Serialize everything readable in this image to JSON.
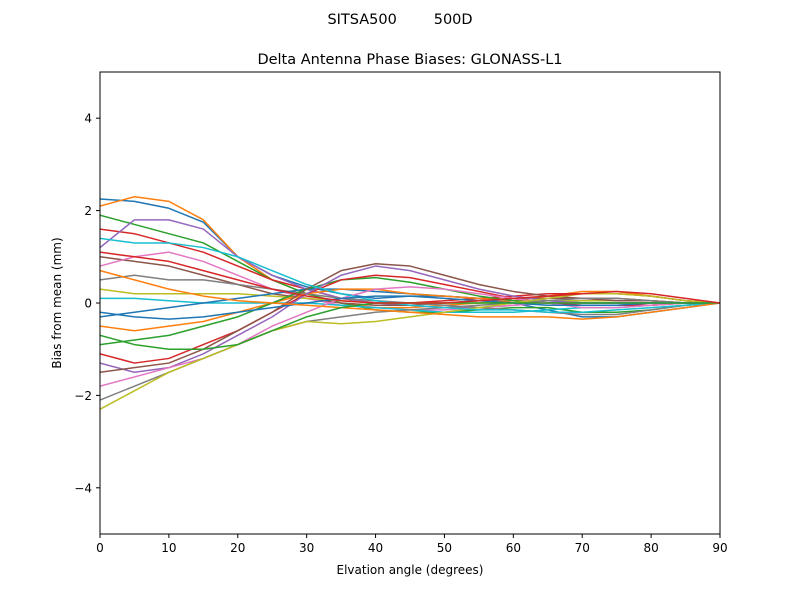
{
  "figure": {
    "suptitle": "SITSA500        500D"
  },
  "chart_data": {
    "type": "line",
    "title": "Delta Antenna Phase Biases: GLONASS-L1",
    "xlabel": "Elvation angle (degrees)",
    "ylabel": "Bias from mean (mm)",
    "xlim": [
      0,
      90
    ],
    "ylim": [
      -5,
      5
    ],
    "xticks": [
      0,
      10,
      20,
      30,
      40,
      50,
      60,
      70,
      80,
      90
    ],
    "yticks": [
      -4,
      -2,
      0,
      2,
      4
    ],
    "ytick_labels": [
      "−4",
      "−2",
      "0",
      "2",
      "4"
    ],
    "grid": false,
    "legend": "none",
    "x": [
      0,
      5,
      10,
      15,
      20,
      25,
      30,
      35,
      40,
      45,
      50,
      55,
      60,
      65,
      70,
      75,
      80,
      85,
      90
    ],
    "colors": [
      "#1f77b4",
      "#ff7f0e",
      "#2ca02c",
      "#d62728",
      "#9467bd",
      "#8c564b",
      "#e377c2",
      "#7f7f7f",
      "#bcbd22",
      "#17becf"
    ],
    "series": [
      {
        "values": [
          2.25,
          2.2,
          2.05,
          1.75,
          1.0,
          0.6,
          0.35,
          0.2,
          0.1,
          0.15,
          0.15,
          0.1,
          0.0,
          -0.15,
          -0.3,
          -0.3,
          -0.2,
          -0.1,
          0.0
        ]
      },
      {
        "values": [
          2.1,
          2.3,
          2.2,
          1.8,
          1.0,
          0.5,
          0.2,
          0.0,
          -0.1,
          -0.1,
          -0.05,
          0.0,
          0.05,
          0.15,
          0.25,
          0.25,
          0.15,
          0.05,
          0.0
        ]
      },
      {
        "values": [
          1.9,
          1.7,
          1.5,
          1.3,
          0.9,
          0.5,
          0.2,
          0.0,
          -0.15,
          -0.2,
          -0.2,
          -0.15,
          -0.1,
          -0.1,
          -0.2,
          -0.2,
          -0.15,
          -0.05,
          0.0
        ]
      },
      {
        "values": [
          1.6,
          1.5,
          1.3,
          1.1,
          0.8,
          0.5,
          0.3,
          0.1,
          0.0,
          0.0,
          0.05,
          0.1,
          0.15,
          0.2,
          0.2,
          0.2,
          0.15,
          0.05,
          0.0
        ]
      },
      {
        "values": [
          1.2,
          1.8,
          1.8,
          1.6,
          1.0,
          0.6,
          0.3,
          0.1,
          0.0,
          -0.05,
          -0.1,
          -0.1,
          -0.05,
          0.0,
          0.05,
          0.05,
          0.05,
          0.0,
          0.0
        ]
      },
      {
        "values": [
          1.0,
          0.9,
          0.8,
          0.6,
          0.4,
          0.2,
          0.1,
          0.0,
          -0.05,
          -0.05,
          0.0,
          0.05,
          0.1,
          0.1,
          0.1,
          0.1,
          0.05,
          0.0,
          0.0
        ]
      },
      {
        "values": [
          0.8,
          1.0,
          1.1,
          0.9,
          0.6,
          0.3,
          0.1,
          -0.05,
          -0.1,
          -0.15,
          -0.15,
          -0.1,
          -0.05,
          0.0,
          0.0,
          0.0,
          0.0,
          0.0,
          0.0
        ]
      },
      {
        "values": [
          0.5,
          0.6,
          0.5,
          0.5,
          0.4,
          0.3,
          0.2,
          0.1,
          0.05,
          0.0,
          -0.05,
          -0.1,
          -0.15,
          -0.2,
          -0.25,
          -0.25,
          -0.15,
          -0.05,
          0.0
        ]
      },
      {
        "values": [
          0.3,
          0.2,
          0.2,
          0.2,
          0.2,
          0.15,
          0.1,
          0.05,
          0.0,
          0.0,
          0.0,
          0.0,
          0.0,
          0.05,
          0.05,
          0.05,
          0.05,
          0.0,
          0.0
        ]
      },
      {
        "values": [
          0.1,
          0.1,
          0.05,
          0.0,
          0.0,
          0.0,
          0.0,
          -0.05,
          -0.1,
          -0.15,
          -0.2,
          -0.2,
          -0.2,
          -0.15,
          -0.1,
          -0.1,
          -0.05,
          0.0,
          0.0
        ]
      },
      {
        "values": [
          -0.3,
          -0.2,
          -0.1,
          0.0,
          0.1,
          0.2,
          0.3,
          0.3,
          0.25,
          0.2,
          0.15,
          0.1,
          0.05,
          0.0,
          0.0,
          0.0,
          0.0,
          0.0,
          0.0
        ]
      },
      {
        "values": [
          -0.5,
          -0.6,
          -0.5,
          -0.4,
          -0.2,
          0.0,
          0.2,
          0.3,
          0.3,
          0.2,
          0.15,
          0.1,
          0.05,
          0.0,
          -0.05,
          -0.05,
          -0.05,
          0.0,
          0.0
        ]
      },
      {
        "values": [
          -0.9,
          -0.8,
          -0.7,
          -0.5,
          -0.3,
          0.0,
          0.3,
          0.5,
          0.55,
          0.45,
          0.3,
          0.15,
          0.05,
          0.0,
          0.0,
          0.0,
          0.0,
          0.0,
          0.0
        ]
      },
      {
        "values": [
          -1.1,
          -1.3,
          -1.2,
          -0.9,
          -0.6,
          -0.2,
          0.2,
          0.5,
          0.6,
          0.55,
          0.4,
          0.25,
          0.1,
          0.0,
          -0.05,
          -0.05,
          -0.05,
          0.0,
          0.0
        ]
      },
      {
        "values": [
          -1.3,
          -1.5,
          -1.4,
          -1.1,
          -0.7,
          -0.3,
          0.2,
          0.6,
          0.8,
          0.7,
          0.5,
          0.3,
          0.15,
          0.05,
          0.0,
          0.0,
          0.0,
          0.0,
          0.0
        ]
      },
      {
        "values": [
          -1.5,
          -1.4,
          -1.3,
          -1.0,
          -0.6,
          -0.2,
          0.3,
          0.7,
          0.85,
          0.8,
          0.6,
          0.4,
          0.25,
          0.15,
          0.1,
          0.05,
          0.05,
          0.0,
          0.0
        ]
      },
      {
        "values": [
          -1.8,
          -1.6,
          -1.4,
          -1.2,
          -0.9,
          -0.5,
          -0.2,
          0.1,
          0.3,
          0.35,
          0.3,
          0.2,
          0.1,
          0.0,
          -0.1,
          -0.1,
          -0.05,
          0.0,
          0.0
        ]
      },
      {
        "values": [
          -2.1,
          -1.8,
          -1.5,
          -1.2,
          -0.9,
          -0.6,
          -0.4,
          -0.3,
          -0.2,
          -0.15,
          -0.1,
          -0.05,
          0.0,
          0.05,
          0.1,
          0.1,
          0.05,
          0.0,
          0.0
        ]
      },
      {
        "values": [
          -2.3,
          -1.9,
          -1.5,
          -1.2,
          -0.9,
          -0.6,
          -0.4,
          -0.45,
          -0.4,
          -0.3,
          -0.2,
          -0.1,
          0.0,
          0.1,
          0.2,
          0.2,
          0.15,
          0.05,
          0.0
        ]
      },
      {
        "values": [
          1.4,
          1.3,
          1.3,
          1.2,
          1.0,
          0.7,
          0.4,
          0.2,
          0.05,
          -0.05,
          -0.1,
          -0.15,
          -0.15,
          -0.2,
          -0.2,
          -0.15,
          -0.1,
          -0.05,
          0.0
        ]
      },
      {
        "values": [
          -0.2,
          -0.3,
          -0.35,
          -0.3,
          -0.2,
          -0.1,
          0.0,
          0.1,
          0.15,
          0.15,
          0.1,
          0.05,
          0.0,
          -0.05,
          -0.05,
          -0.05,
          0.0,
          0.0,
          0.0
        ]
      },
      {
        "values": [
          0.7,
          0.5,
          0.3,
          0.15,
          0.05,
          0.0,
          -0.05,
          -0.1,
          -0.15,
          -0.2,
          -0.25,
          -0.3,
          -0.3,
          -0.3,
          -0.35,
          -0.3,
          -0.2,
          -0.1,
          0.0
        ]
      },
      {
        "values": [
          -0.7,
          -0.9,
          -1.0,
          -1.0,
          -0.9,
          -0.6,
          -0.3,
          -0.1,
          0.0,
          0.0,
          0.0,
          0.0,
          0.0,
          0.0,
          0.0,
          0.0,
          0.0,
          0.0,
          0.0
        ]
      },
      {
        "values": [
          1.1,
          1.0,
          0.9,
          0.7,
          0.5,
          0.3,
          0.15,
          0.05,
          0.0,
          0.0,
          0.0,
          0.05,
          0.1,
          0.15,
          0.2,
          0.25,
          0.2,
          0.1,
          0.0
        ]
      }
    ]
  }
}
